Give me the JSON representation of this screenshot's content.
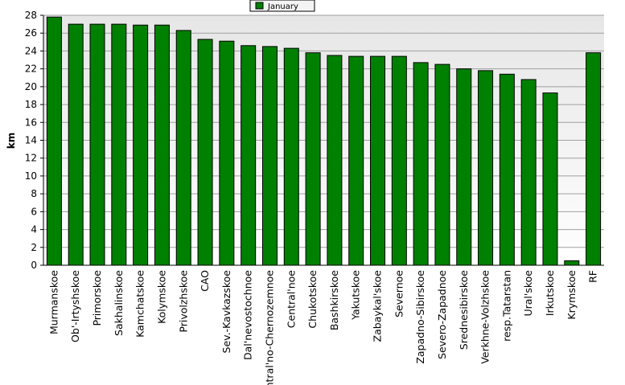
{
  "chart_data": {
    "type": "bar",
    "categories": [
      "Murmanskoe",
      "Ob'-Irtyshskoe",
      "Primorskoe",
      "Sakhalinskoe",
      "Kamchatskoe",
      "Kolymskoe",
      "Privolzhskoe",
      "CAO",
      "Sev.-Kavkazskoe",
      "Dal'nevostochnoe",
      "Central'no-Chernozemnoe",
      "Central'noe",
      "Chukotskoe",
      "Bashkirskoe",
      "Yakutskoe",
      "Zabaykal'skoe",
      "Severnoe",
      "Zapadno-Sibirskoe",
      "Severo-Zapadnoe",
      "Srednesibirskoe",
      "Verkhne-Volzhskoe",
      "resp.Tatarstan",
      "Ural'skoe",
      "Irkutskoe",
      "Krymskoe",
      "RF"
    ],
    "series": [
      {
        "name": "January",
        "color": "#008000",
        "values": [
          27.8,
          27.0,
          27.0,
          27.0,
          26.9,
          26.9,
          26.3,
          25.3,
          25.1,
          24.6,
          24.5,
          24.3,
          23.8,
          23.5,
          23.4,
          23.4,
          23.4,
          22.7,
          22.5,
          22.0,
          21.8,
          21.4,
          20.8,
          19.3,
          0.5,
          23.8
        ]
      }
    ],
    "xlabel": "",
    "ylabel": "km",
    "ylim": [
      0,
      28
    ],
    "yticks": [
      0,
      2,
      4,
      6,
      8,
      10,
      12,
      14,
      16,
      18,
      20,
      22,
      24,
      26,
      28
    ],
    "grid": true,
    "legend_position": "top-center"
  }
}
